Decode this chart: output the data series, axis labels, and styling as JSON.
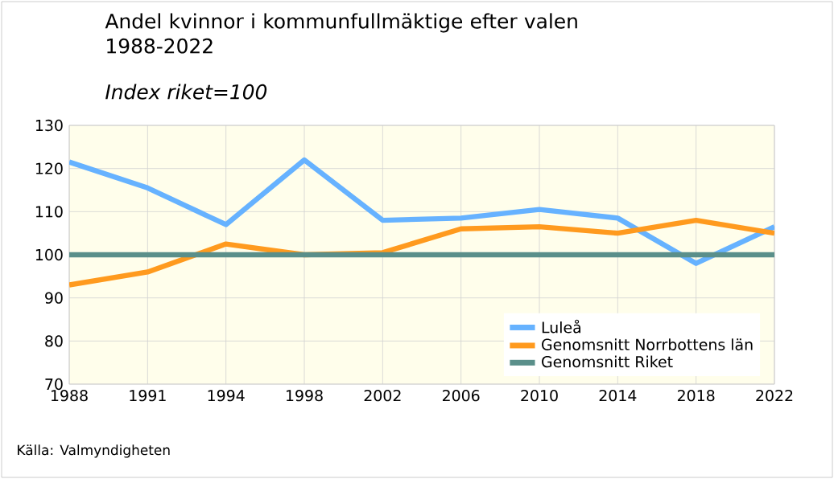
{
  "chart_data": {
    "type": "line",
    "title": "Andel kvinnor i kommunfullmäktige efter valen 1988-2022",
    "subtitle": "Index riket=100",
    "annotations": [
      "Källa: Valmyndigheten"
    ],
    "categories": [
      "1988",
      "1991",
      "1994",
      "1998",
      "2002",
      "2006",
      "2010",
      "2014",
      "2018",
      "2022"
    ],
    "series": [
      {
        "name": "Luleå",
        "color": "#66b2ff",
        "values": [
          121.5,
          115.5,
          107,
          122,
          108,
          108.5,
          110.5,
          108.5,
          98,
          106.5
        ]
      },
      {
        "name": "Genomsnitt Norrbottens län",
        "color": "#ff9a1e",
        "values": [
          93,
          96,
          102.5,
          100,
          100.5,
          106,
          106.5,
          105,
          108,
          105
        ]
      },
      {
        "name": "Genomsnitt Riket",
        "color": "#5a8f8a",
        "values": [
          100,
          100,
          100,
          100,
          100,
          100,
          100,
          100,
          100,
          100
        ]
      }
    ],
    "ylim": [
      70,
      130
    ],
    "yticks": [
      70,
      80,
      90,
      100,
      110,
      120,
      130
    ],
    "grid": true,
    "legend": "bottom right",
    "marker": "none",
    "line_style": "solid"
  }
}
